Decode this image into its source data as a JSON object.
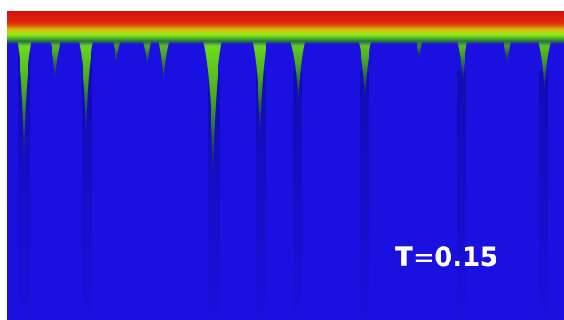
{
  "label": "T=0.15"
}
